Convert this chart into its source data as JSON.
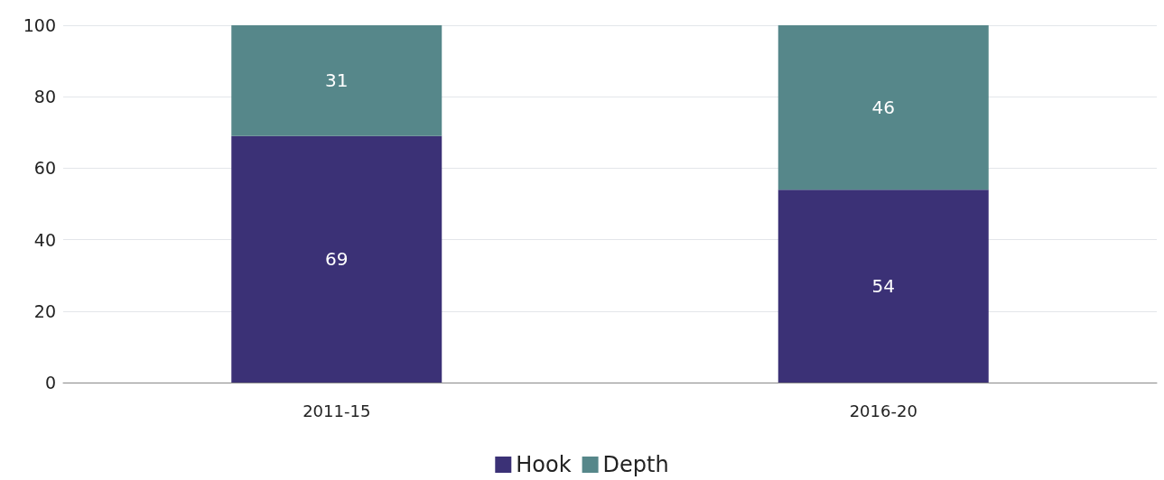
{
  "chart_data": {
    "type": "bar",
    "stacked": true,
    "categories": [
      "2011-15",
      "2016-20"
    ],
    "series": [
      {
        "name": "Hook",
        "color": "#3b3176",
        "values": [
          69,
          54
        ]
      },
      {
        "name": "Depth",
        "color": "#56878a",
        "values": [
          31,
          46
        ]
      }
    ],
    "ylim": [
      0,
      100
    ],
    "yticks": [
      0,
      20,
      40,
      60,
      80,
      100
    ],
    "grid": "y",
    "legend": "bottom",
    "data_labels": true
  }
}
